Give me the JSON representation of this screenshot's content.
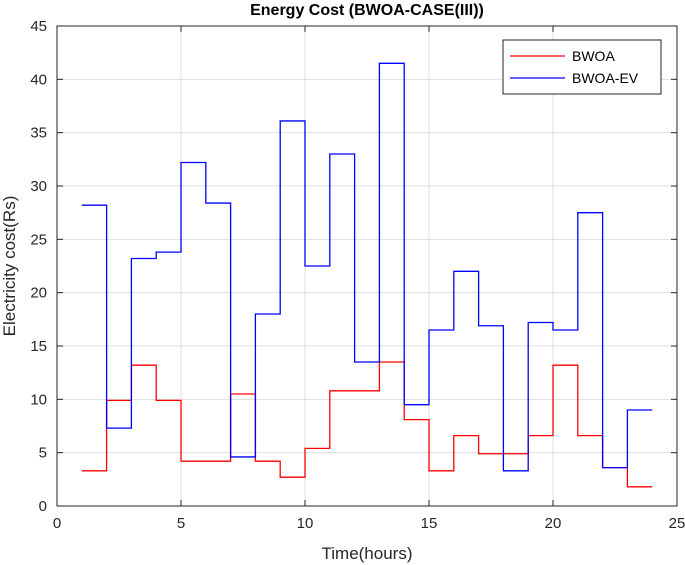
{
  "chart_data": {
    "type": "line",
    "step": true,
    "title": "Energy Cost (BWOA-CASE(III))",
    "xlabel": "Time(hours)",
    "ylabel": "Electricity cost(Rs)",
    "xlim": [
      0,
      25
    ],
    "ylim": [
      0,
      45
    ],
    "xticks": [
      0,
      5,
      10,
      15,
      20,
      25
    ],
    "yticks": [
      0,
      5,
      10,
      15,
      20,
      25,
      30,
      35,
      40,
      45
    ],
    "grid": true,
    "legend_position": "top-right",
    "series": [
      {
        "name": "BWOA",
        "color": "#ff0000",
        "x": [
          1,
          2,
          3,
          4,
          5,
          6,
          7,
          8,
          9,
          10,
          11,
          12,
          13,
          14,
          15,
          16,
          17,
          18,
          19,
          20,
          21,
          22,
          23,
          24
        ],
        "values": [
          3.3,
          9.9,
          13.2,
          9.9,
          4.2,
          4.2,
          10.5,
          4.2,
          2.7,
          5.4,
          10.8,
          10.8,
          13.5,
          8.1,
          3.3,
          6.6,
          4.9,
          4.9,
          6.6,
          13.2,
          6.6,
          3.6,
          1.8,
          1.8
        ]
      },
      {
        "name": "BWOA-EV",
        "color": "#0000ff",
        "x": [
          1,
          2,
          3,
          4,
          5,
          6,
          7,
          8,
          9,
          10,
          11,
          12,
          13,
          14,
          15,
          16,
          17,
          18,
          19,
          20,
          21,
          22,
          23,
          24
        ],
        "values": [
          28.2,
          7.3,
          23.2,
          23.8,
          32.2,
          28.4,
          4.6,
          18.0,
          36.1,
          22.5,
          33.0,
          13.5,
          41.5,
          9.5,
          16.5,
          22.0,
          16.9,
          3.3,
          17.2,
          16.5,
          27.5,
          3.6,
          9.0,
          9.0
        ]
      }
    ]
  }
}
